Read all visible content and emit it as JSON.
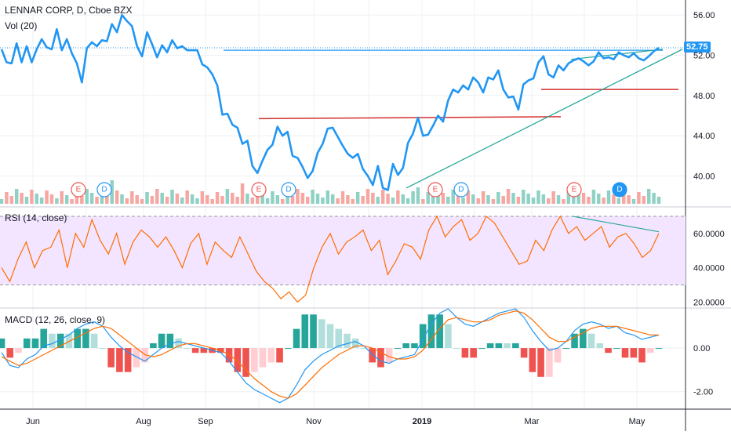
{
  "header": {
    "title": "LENNAR CORP, D, Cboe BZX",
    "volume_label": "Vol (20)"
  },
  "rsi_pane": {
    "title": "RSI (14, close)"
  },
  "macd_pane": {
    "title": "MACD (12, 26, close, 9)"
  },
  "colors": {
    "price_line": "#2196f3",
    "vol_up": "#8fd1c5",
    "vol_down": "#f7a7a2",
    "rsi_line": "#ff6d00",
    "rsi_band": "#f3e5ff",
    "macd_line": "#2196f3",
    "signal_line": "#ff6d00",
    "hist_pos_strong": "#26a69a",
    "hist_pos_weak": "#b2dfdb",
    "hist_neg_strong": "#ef5350",
    "hist_neg_weak": "#ffcdd2",
    "support_line": "#d32f2f",
    "trend_line": "#26a69a",
    "grid": "#eef0f3",
    "axis_border": "#2a2e39",
    "price_tag_bg": "#2196f3"
  },
  "price_axis": {
    "ticks": [
      "56.00",
      "52.00",
      "48.00",
      "44.00",
      "40.00"
    ],
    "current": "52.75"
  },
  "rsi_axis": {
    "ticks": [
      "60.0000",
      "40.0000",
      "20.0000"
    ]
  },
  "macd_axis": {
    "ticks": [
      "0.00",
      "-2.00"
    ]
  },
  "time_axis": {
    "labels": [
      "Jun",
      "Aug",
      "Sep",
      "Nov",
      "2019",
      "Mar",
      "May"
    ]
  },
  "events": [
    {
      "label": "E",
      "kind": "earnings"
    },
    {
      "label": "D",
      "kind": "dividend"
    },
    {
      "label": "E",
      "kind": "earnings"
    },
    {
      "label": "D",
      "kind": "dividend"
    },
    {
      "label": "E",
      "kind": "earnings"
    },
    {
      "label": "D",
      "kind": "dividend"
    },
    {
      "label": "E",
      "kind": "earnings"
    },
    {
      "label": "D",
      "kind": "dividend-active"
    }
  ],
  "chart_data": [
    {
      "type": "line",
      "title": "LENNAR CORP, D, Cboe BZX",
      "series": [
        {
          "name": "LENNAR CORP",
          "values": [
            52.6,
            51.3,
            51.2,
            53.2,
            51.3,
            52.9,
            51.3,
            52.6,
            53.6,
            52.8,
            52.6,
            54.6,
            52.5,
            53.6,
            52.2,
            51.2,
            49.3,
            52.7,
            53.3,
            52.9,
            53.5,
            53.4,
            55.1,
            54.3,
            56.0,
            55.4,
            54.9,
            52.9,
            51.9,
            54.3,
            53.1,
            51.8,
            53.0,
            52.3,
            53.5,
            52.7,
            52.9,
            52.5,
            52.5,
            52.5,
            51.1,
            50.8,
            50.1,
            49.0,
            46.1,
            46.2,
            45.1,
            44.8,
            43.2,
            43.5,
            41.0,
            40.3,
            41.5,
            42.6,
            43.1,
            44.9,
            44.0,
            44.4,
            42.0,
            41.8,
            40.9,
            39.8,
            40.5,
            42.3,
            43.2,
            44.7,
            44.8,
            43.9,
            43.0,
            42.2,
            41.8,
            42.2,
            40.7,
            40.0,
            39.1,
            41.0,
            38.8,
            38.6,
            41.2,
            40.1,
            40.8,
            43.3,
            44.2,
            45.8,
            44.0,
            44.1,
            45.0,
            46.0,
            45.4,
            47.5,
            48.6,
            48.3,
            49.0,
            48.6,
            49.8,
            49.3,
            48.3,
            49.8,
            49.6,
            50.5,
            48.6,
            47.8,
            47.9,
            46.6,
            49.1,
            49.5,
            49.7,
            51.3,
            51.9,
            50.1,
            49.8,
            51.0,
            50.5,
            51.2,
            51.5,
            51.7,
            51.4,
            51.0,
            51.4,
            52.3,
            51.7,
            51.8,
            51.6,
            52.3,
            52.0,
            51.8,
            52.2,
            51.7,
            51.5,
            51.9,
            52.4,
            52.75
          ],
          "x": "trading days Jun 2018 – May 2019 (approx. weekly sampling)"
        }
      ],
      "yticks": [
        56,
        52,
        48,
        44,
        40
      ],
      "ylim": [
        37,
        57.5
      ],
      "xlabel": "",
      "ylabel": "",
      "grid": true,
      "last_value": 52.75
    },
    {
      "type": "line",
      "title": "RSI (14, close)",
      "series": [
        {
          "name": "RSI",
          "values": [
            40,
            32,
            45,
            55,
            40,
            50,
            52,
            62,
            40,
            60,
            52,
            68,
            56,
            48,
            60,
            42,
            55,
            62,
            58,
            52,
            58,
            50,
            40,
            54,
            60,
            42,
            55,
            50,
            46,
            58,
            48,
            38,
            32,
            28,
            22,
            26,
            20,
            24,
            40,
            52,
            60,
            48,
            55,
            58,
            62,
            50,
            56,
            36,
            44,
            54,
            52,
            45,
            62,
            70,
            58,
            64,
            68,
            56,
            60,
            70,
            66,
            58,
            50,
            42,
            44,
            56,
            50,
            62,
            70,
            60,
            64,
            56,
            60,
            64,
            52,
            58,
            60,
            54,
            46,
            50,
            60
          ]
        }
      ],
      "yticks": [
        60,
        40,
        20
      ],
      "ylim": [
        17,
        75
      ],
      "bands": [
        30,
        70
      ],
      "grid": true
    },
    {
      "type": "line",
      "title": "MACD (12, 26, close, 9)",
      "series": [
        {
          "name": "MACD",
          "values": [
            -0.2,
            -0.8,
            -0.9,
            -0.5,
            -0.3,
            0.1,
            0.2,
            0.4,
            0.6,
            0.9,
            1.1,
            1.2,
            1.0,
            0.5,
            0.1,
            -0.2,
            -0.4,
            -0.6,
            -0.3,
            0.0,
            0.2,
            0.3,
            0.2,
            0.1,
            0.0,
            -0.1,
            -0.2,
            -0.6,
            -1.1,
            -1.6,
            -1.9,
            -2.1,
            -2.3,
            -2.5,
            -2.3,
            -1.7,
            -1.0,
            -0.6,
            -0.3,
            -0.1,
            0.1,
            0.2,
            0.3,
            0.1,
            -0.3,
            -0.6,
            -0.7,
            -0.5,
            -0.4,
            -0.3,
            0.4,
            1.1,
            1.6,
            1.8,
            1.4,
            1.1,
            1.0,
            1.2,
            1.4,
            1.6,
            1.7,
            1.8,
            1.4,
            0.8,
            0.3,
            -0.1,
            0.0,
            0.3,
            0.8,
            1.1,
            1.2,
            1.1,
            0.9,
            1.0,
            0.7,
            0.6,
            0.4,
            0.5,
            0.6
          ]
        },
        {
          "name": "Signal",
          "values": [
            -0.4,
            -0.6,
            -0.8,
            -0.7,
            -0.5,
            -0.3,
            -0.1,
            0.1,
            0.3,
            0.5,
            0.7,
            0.9,
            1.0,
            0.9,
            0.6,
            0.3,
            0.0,
            -0.3,
            -0.4,
            -0.3,
            -0.1,
            0.1,
            0.2,
            0.2,
            0.1,
            0.0,
            -0.1,
            -0.3,
            -0.6,
            -1.0,
            -1.4,
            -1.7,
            -2.0,
            -2.2,
            -2.3,
            -2.1,
            -1.7,
            -1.3,
            -0.9,
            -0.6,
            -0.3,
            -0.1,
            0.1,
            0.1,
            0.0,
            -0.2,
            -0.4,
            -0.5,
            -0.5,
            -0.4,
            -0.1,
            0.4,
            0.9,
            1.3,
            1.4,
            1.3,
            1.2,
            1.2,
            1.3,
            1.5,
            1.6,
            1.7,
            1.6,
            1.3,
            0.9,
            0.5,
            0.3,
            0.3,
            0.5,
            0.7,
            0.9,
            1.0,
            1.0,
            1.0,
            0.9,
            0.8,
            0.7,
            0.6,
            0.6
          ]
        }
      ],
      "yticks": [
        0,
        -2
      ],
      "ylim": [
        -2.8,
        1.8
      ],
      "grid": true
    }
  ]
}
